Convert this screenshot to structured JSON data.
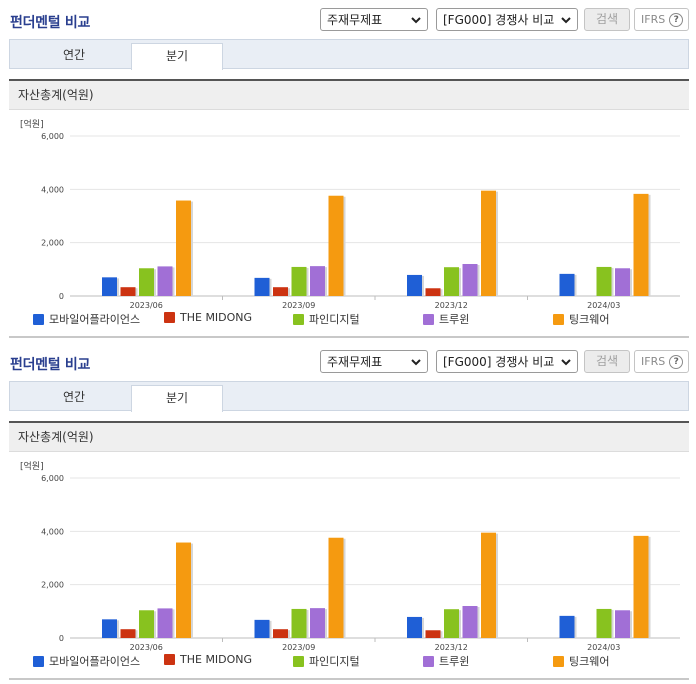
{
  "panels": [
    {
      "title": "펀더멘털 비교",
      "select_statement": "주재무제표",
      "select_compare": "[FG000] 경쟁사 비교",
      "search_label": "검색",
      "ifrs_label": "IFRS",
      "help_glyph": "?",
      "tabs": [
        "연간",
        "분기"
      ],
      "active_tab": "분기",
      "section_title": "자산총계(억원)",
      "unit_label": "[억원]"
    },
    {
      "title": "펀더멘털 비교",
      "select_statement": "주재무제표",
      "select_compare": "[FG000] 경쟁사 비교",
      "search_label": "검색",
      "ifrs_label": "IFRS",
      "help_glyph": "?",
      "tabs": [
        "연간",
        "분기"
      ],
      "active_tab": "분기",
      "section_title": "자산총계(억원)",
      "unit_label": "[억원]"
    }
  ],
  "chart_data": {
    "type": "bar",
    "title": "자산총계(억원)",
    "ylabel": "[억원]",
    "ylim": [
      0,
      6000
    ],
    "yticks": [
      0,
      2000,
      4000,
      6000
    ],
    "ytick_labels": [
      "0",
      "2,000",
      "4,000",
      "6,000"
    ],
    "categories": [
      "2023/06",
      "2023/09",
      "2023/12",
      "2024/03"
    ],
    "series": [
      {
        "name": "모바일어플라이언스",
        "color": "#1f5fd6",
        "values": [
          700,
          680,
          790,
          830
        ]
      },
      {
        "name": "THE MIDONG",
        "color": "#cc3311",
        "values": [
          330,
          330,
          290,
          null
        ]
      },
      {
        "name": "파인디지털",
        "color": "#88c21f",
        "values": [
          1040,
          1090,
          1080,
          1090
        ]
      },
      {
        "name": "트루윈",
        "color": "#a16fd6",
        "values": [
          1110,
          1120,
          1200,
          1040
        ]
      },
      {
        "name": "팅크웨어",
        "color": "#f59a10",
        "values": [
          3580,
          3760,
          3950,
          3830
        ]
      }
    ],
    "legend": "bottom",
    "grid": true
  },
  "icons": {
    "dropdown": "chevron-down-icon",
    "help": "question-circle-icon"
  }
}
